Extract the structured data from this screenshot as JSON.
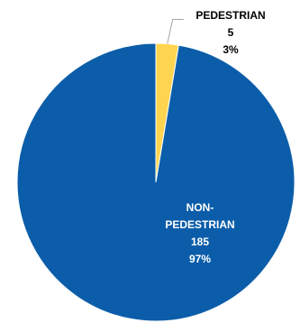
{
  "chart_data": {
    "type": "pie",
    "slices": [
      {
        "name_lines": [
          "NON-",
          "PEDESTRIAN"
        ],
        "value": 185,
        "value_label": "185",
        "percent_label": "97%",
        "color": "#0B5DA9",
        "label_position": "inside"
      },
      {
        "name_lines": [
          "PEDESTRIAN"
        ],
        "value": 5,
        "value_label": "5",
        "percent_label": "3%",
        "color": "#FFD54F",
        "label_position": "outside-top-right"
      }
    ],
    "start_angle": "12 o'clock",
    "direction": "clockwise",
    "legend": "none"
  }
}
